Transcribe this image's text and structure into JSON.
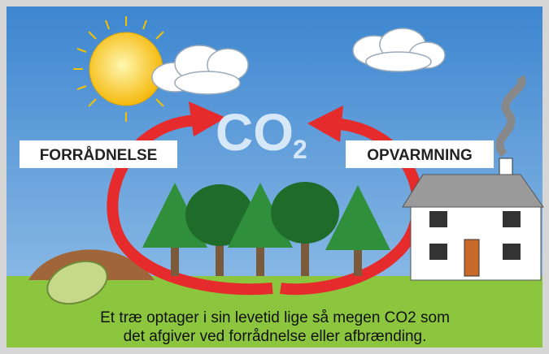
{
  "labels": {
    "left": "FORRÅDNELSE",
    "right": "OPVARMNING",
    "co": "CO",
    "sub": "2"
  },
  "caption": [
    "Et træ optager i sin levetid lige så megen CO2 som",
    "det afgiver ved forrådnelse eller afbrænding."
  ]
}
